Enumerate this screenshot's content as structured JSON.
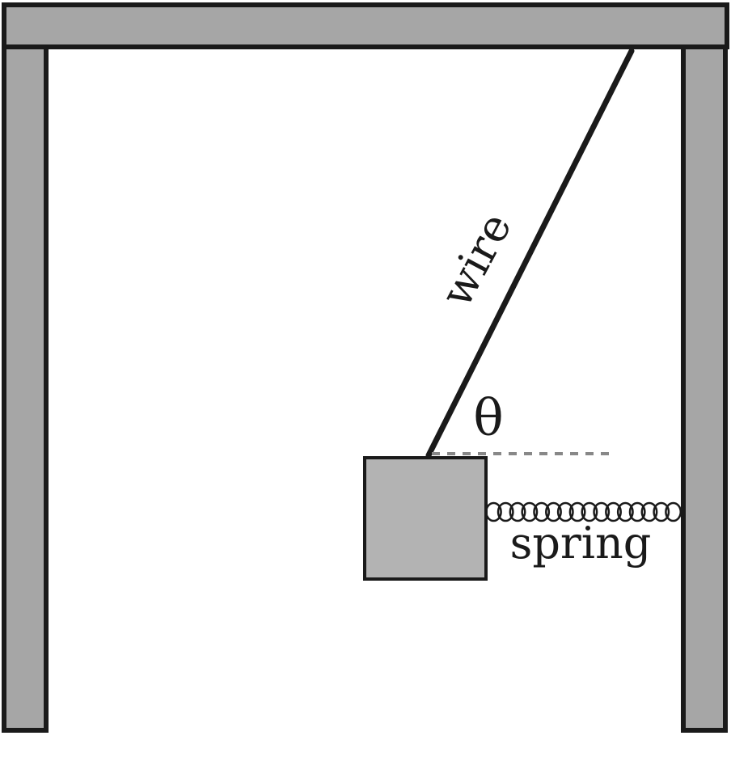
{
  "diagram": {
    "labels": {
      "wire": "wire",
      "angle": "θ",
      "spring": "spring"
    },
    "colors": {
      "frame_fill": "#a6a6a6",
      "block_fill": "#b3b3b3",
      "stroke": "#1a1a1a",
      "reference_line": "#888888",
      "background": "#ffffff"
    }
  }
}
